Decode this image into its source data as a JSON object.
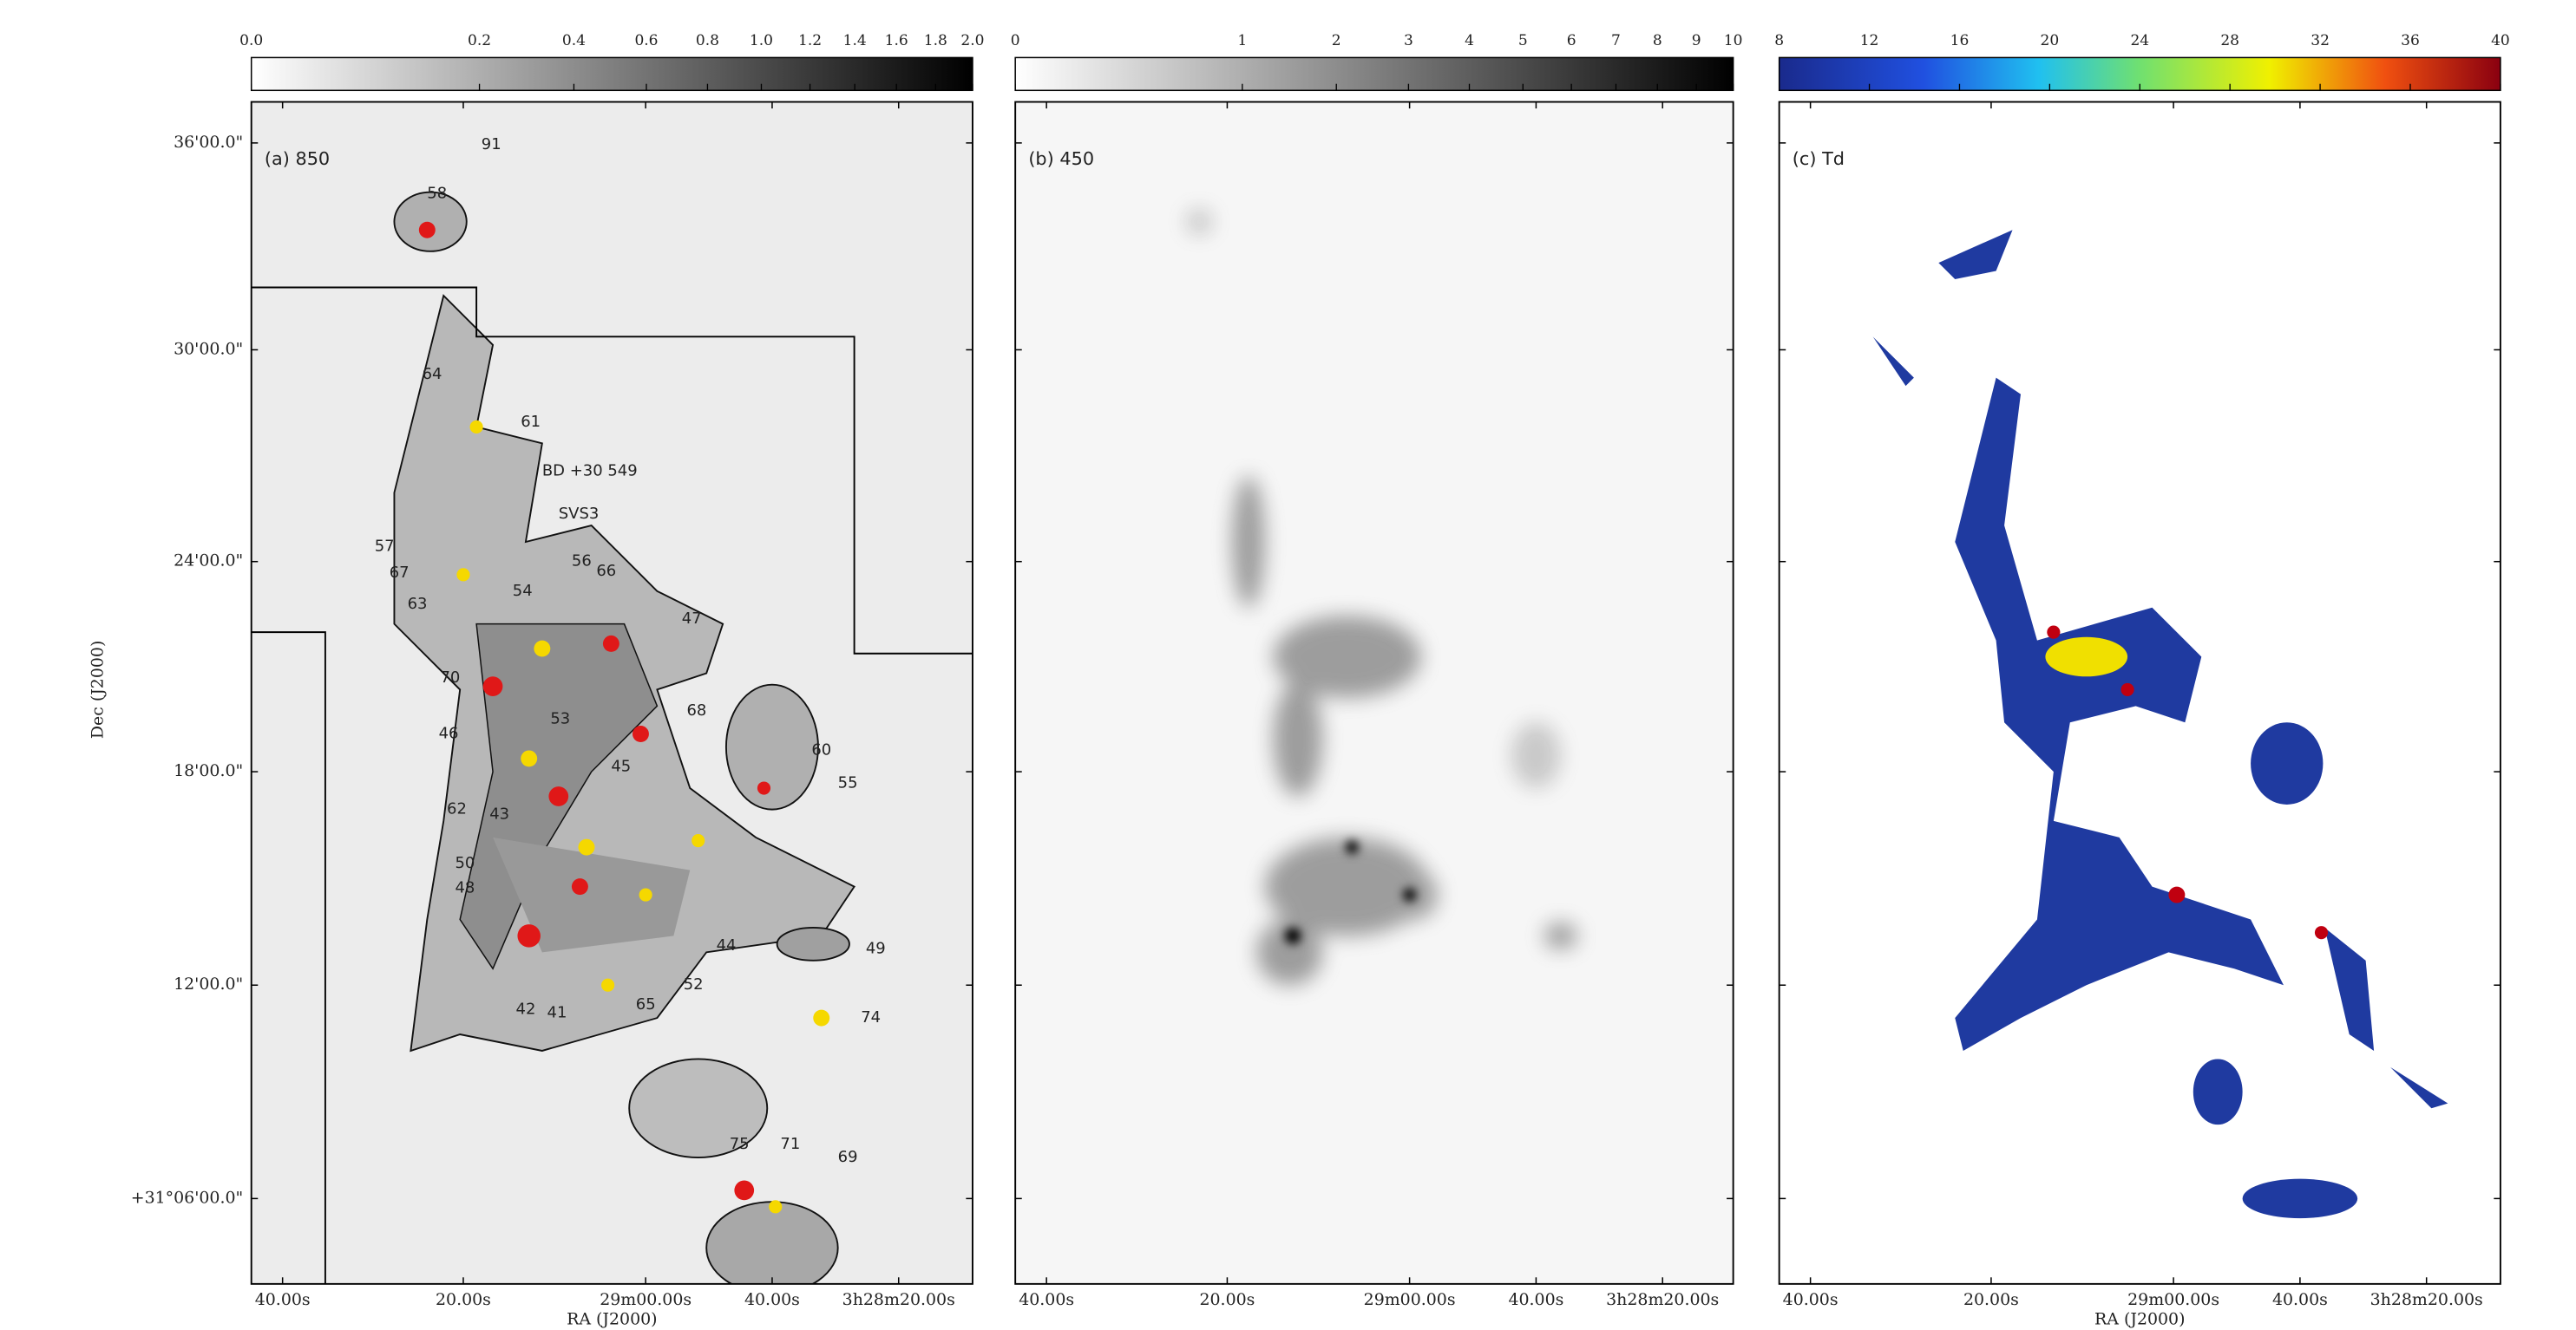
{
  "axes": {
    "y_label": "Dec (J2000)",
    "x_label": "RA (J2000)",
    "y_ticks": [
      "36'00.0\"",
      "30'00.0\"",
      "24'00.0\"",
      "18'00.0\"",
      "12'00.0\"",
      "+31°06'00.0\""
    ],
    "x_ticks": [
      "40.00s",
      "20.00s",
      "29m00.00s",
      "40.00s",
      "3h28m20.00s"
    ]
  },
  "panels": [
    {
      "label": "(a) 850",
      "x_label": true,
      "colorbar": {
        "scale": "sqrt",
        "lim": [
          0,
          2
        ],
        "ticks": [
          {
            "value": 0,
            "label": "0.0"
          },
          {
            "value": 0.2,
            "label": "0.2"
          },
          {
            "value": 0.4,
            "label": "0.4"
          },
          {
            "value": 0.6,
            "label": "0.6"
          },
          {
            "value": 0.8,
            "label": "0.8"
          },
          {
            "value": 1,
            "label": "1.0"
          },
          {
            "value": 1.2,
            "label": "1.2"
          },
          {
            "value": 1.4,
            "label": "1.4"
          },
          {
            "value": 1.6,
            "label": "1.6"
          },
          {
            "value": 1.8,
            "label": "1.8"
          },
          {
            "value": 2,
            "label": "2.0"
          }
        ]
      },
      "sources": [
        "91",
        "58",
        "64",
        "61",
        "BD +30 549",
        "SVS3",
        "57",
        "67",
        "63",
        "54",
        "56",
        "66",
        "47",
        "70",
        "53",
        "68",
        "46",
        "45",
        "60",
        "55",
        "62",
        "43",
        "50",
        "48",
        "44",
        "49",
        "42",
        "41",
        "65",
        "52",
        "74",
        "75",
        "71",
        "69"
      ]
    },
    {
      "label": "(b) 450",
      "x_label": false,
      "colorbar": {
        "scale": "sqrt",
        "lim": [
          0,
          10
        ],
        "ticks": [
          0,
          1,
          2,
          3,
          4,
          5,
          6,
          7,
          8,
          9,
          10
        ]
      }
    },
    {
      "label": "(c) Td",
      "x_label": true,
      "colorbar": {
        "scale": "linear",
        "lim": [
          8,
          40
        ],
        "ticks": [
          8,
          12,
          16,
          20,
          24,
          28,
          32,
          36,
          40
        ]
      }
    }
  ]
}
